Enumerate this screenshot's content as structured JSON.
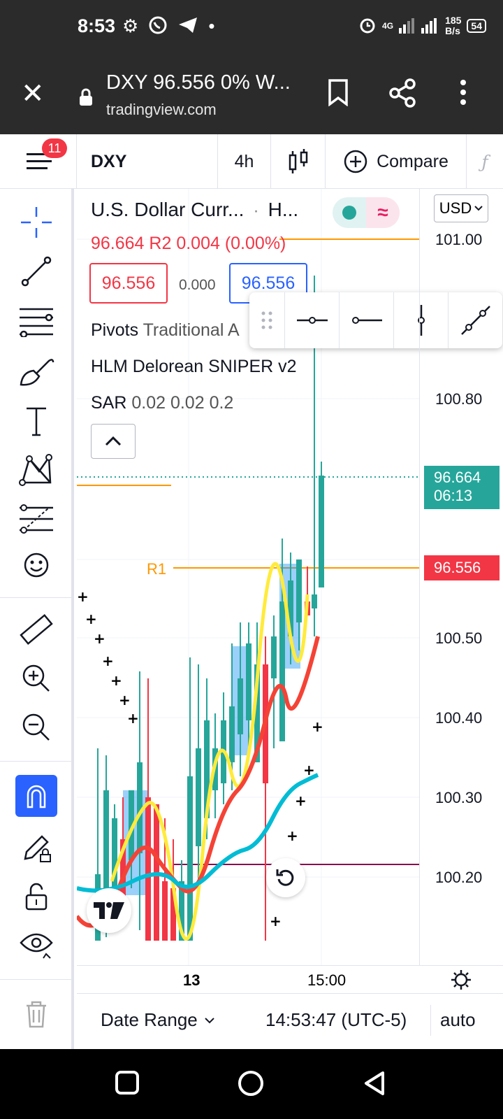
{
  "status_bar": {
    "time": "8:53",
    "net_speed_value": "185",
    "net_speed_unit": "B/s",
    "battery": "54",
    "network_type": "4G"
  },
  "browser": {
    "tab_title": "DXY 96.556 0% W...",
    "domain": "tradingview.com"
  },
  "toolbar": {
    "notification_count": "11",
    "symbol": "DXY",
    "interval": "4h",
    "compare_label": "Compare"
  },
  "legend": {
    "instrument_name": "U.S. Dollar Curr...",
    "instrument_suffix": "H...",
    "price_line": "96.664",
    "price_change": "R2 0.004 (0.00%)",
    "bid": "96.556",
    "spread": "0.000",
    "ask": "96.556",
    "indicator_1_name": "Pivots",
    "indicator_1_params": "Traditional A",
    "indicator_2_name": "HLM Delorean SNIPER v2",
    "indicator_3_name": "SAR",
    "indicator_3_params": "0.02 0.02 0.2"
  },
  "price_axis": {
    "currency": "USD",
    "ticks": [
      "101.00",
      "100.80",
      "100.50",
      "100.40",
      "100.30",
      "100.20"
    ],
    "last_price": "96.664",
    "countdown": "06:13",
    "r1_price": "96.556"
  },
  "chart_labels": {
    "r1": "R1"
  },
  "time_axis": {
    "labels": [
      "13",
      "15:00"
    ]
  },
  "bottom_bar": {
    "date_range": "Date Range",
    "clock": "14:53:47 (UTC-5)",
    "scale": "auto"
  },
  "colors": {
    "up": "#26a69a",
    "down": "#f23645",
    "ema_red": "#f44336",
    "ema_cyan": "#00bcd4",
    "ema_yellow": "#ffeb3b",
    "pivot_orange": "#ff9800",
    "accent_blue": "#2962ff"
  }
}
